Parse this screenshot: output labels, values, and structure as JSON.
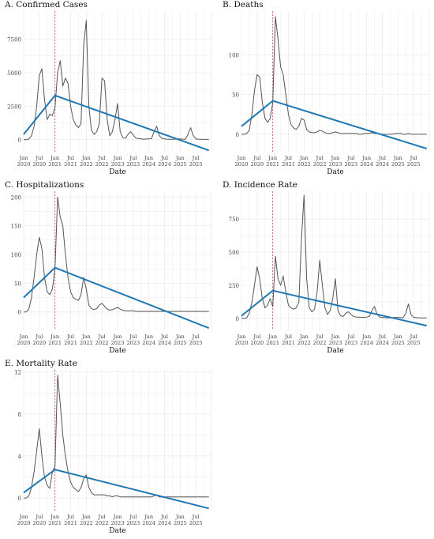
{
  "x_tick_labels": [
    [
      "Jan",
      "2020"
    ],
    [
      "Jul",
      "2020"
    ],
    [
      "Jan",
      "2021"
    ],
    [
      "Jul",
      "2021"
    ],
    [
      "Jan",
      "2022"
    ],
    [
      "Jul",
      "2022"
    ],
    [
      "Jan",
      "2023"
    ],
    [
      "Jul",
      "2023"
    ],
    [
      "Jan",
      "2024"
    ],
    [
      "Jul",
      "2024"
    ],
    [
      "Jan",
      "2025"
    ],
    [
      "Jul",
      "2025"
    ]
  ],
  "colors": {
    "series": "#555555",
    "trend": "#1f78b4",
    "vline": "#e0505a",
    "grid": "#ebebeb"
  },
  "chart_data": [
    {
      "type": "line",
      "title": "A. Confirmed Cases",
      "xlabel": "Date",
      "ylabel": "",
      "xlim": [
        "2020-01",
        "2025-12"
      ],
      "ylim": [
        -900,
        9600
      ],
      "yticks": [
        0,
        2500,
        5000,
        7500
      ],
      "grid": true,
      "breakpoint": "2021-01",
      "series": [
        {
          "x": [
            "2020-01",
            "2020-02",
            "2020-03",
            "2020-04",
            "2020-05",
            "2020-06",
            "2020-07",
            "2020-08",
            "2020-09",
            "2020-10",
            "2020-11",
            "2020-12",
            "2021-01",
            "2021-02",
            "2021-03",
            "2021-04",
            "2021-05",
            "2021-06",
            "2021-07",
            "2021-08",
            "2021-09",
            "2021-10",
            "2021-11",
            "2021-12",
            "2022-01",
            "2022-02",
            "2022-03",
            "2022-04",
            "2022-05",
            "2022-06",
            "2022-07",
            "2022-08",
            "2022-09",
            "2022-10",
            "2022-11",
            "2022-12",
            "2023-01",
            "2023-02",
            "2023-03",
            "2023-04",
            "2023-05",
            "2023-06",
            "2023-07",
            "2023-08",
            "2023-09",
            "2023-10",
            "2023-11",
            "2023-12",
            "2024-01",
            "2024-02",
            "2024-03",
            "2024-04",
            "2024-05",
            "2024-06",
            "2024-07",
            "2024-08",
            "2024-09",
            "2024-10",
            "2024-11",
            "2024-12",
            "2025-01",
            "2025-02",
            "2025-03",
            "2025-04",
            "2025-05",
            "2025-06",
            "2025-07",
            "2025-08",
            "2025-09",
            "2025-10",
            "2025-11",
            "2025-12"
          ],
          "values": [
            0,
            0,
            50,
            300,
            1000,
            2500,
            4800,
            5300,
            3000,
            1500,
            1900,
            1800,
            2400,
            5000,
            5900,
            4000,
            4600,
            4200,
            2500,
            1500,
            1100,
            900,
            1200,
            7000,
            8900,
            2500,
            700,
            400,
            600,
            1200,
            4600,
            4400,
            1500,
            300,
            600,
            1500,
            2700,
            600,
            150,
            100,
            400,
            600,
            350,
            120,
            80,
            60,
            40,
            50,
            60,
            80,
            600,
            1000,
            300,
            100,
            60,
            40,
            30,
            30,
            40,
            50,
            60,
            40,
            30,
            400,
            900,
            300,
            60,
            40,
            30,
            20,
            20,
            20
          ]
        },
        {
          "x": [
            "2020-01",
            "2021-01",
            "2025-12"
          ],
          "values": [
            400,
            3300,
            -800
          ]
        }
      ]
    },
    {
      "type": "line",
      "title": "B. Deaths",
      "xlabel": "Date",
      "ylabel": "",
      "xlim": [
        "2020-01",
        "2025-12"
      ],
      "ylim": [
        -22,
        155
      ],
      "yticks": [
        0,
        50,
        100
      ],
      "grid": true,
      "breakpoint": "2021-01",
      "series": [
        {
          "x": [
            "2020-01",
            "2020-02",
            "2020-03",
            "2020-04",
            "2020-05",
            "2020-06",
            "2020-07",
            "2020-08",
            "2020-09",
            "2020-10",
            "2020-11",
            "2020-12",
            "2021-01",
            "2021-02",
            "2021-03",
            "2021-04",
            "2021-05",
            "2021-06",
            "2021-07",
            "2021-08",
            "2021-09",
            "2021-10",
            "2021-11",
            "2021-12",
            "2022-01",
            "2022-02",
            "2022-03",
            "2022-04",
            "2022-05",
            "2022-06",
            "2022-07",
            "2022-08",
            "2022-09",
            "2022-10",
            "2022-11",
            "2022-12",
            "2023-01",
            "2023-02",
            "2023-03",
            "2023-04",
            "2023-05",
            "2023-06",
            "2023-07",
            "2023-08",
            "2023-09",
            "2023-10",
            "2023-11",
            "2023-12",
            "2024-01",
            "2024-02",
            "2024-03",
            "2024-04",
            "2024-05",
            "2024-06",
            "2024-07",
            "2024-08",
            "2024-09",
            "2024-10",
            "2024-11",
            "2024-12",
            "2025-01",
            "2025-02",
            "2025-03",
            "2025-04",
            "2025-05",
            "2025-06",
            "2025-07",
            "2025-08",
            "2025-09",
            "2025-10",
            "2025-11",
            "2025-12"
          ],
          "values": [
            0,
            0,
            1,
            5,
            25,
            55,
            75,
            72,
            40,
            20,
            15,
            20,
            40,
            148,
            120,
            85,
            75,
            50,
            25,
            12,
            8,
            6,
            10,
            20,
            18,
            6,
            3,
            2,
            2,
            3,
            5,
            4,
            2,
            1,
            1,
            2,
            3,
            2,
            1,
            1,
            1,
            1,
            1,
            1,
            1,
            0,
            0,
            1,
            1,
            1,
            2,
            1,
            1,
            0,
            0,
            0,
            0,
            0,
            0,
            1,
            1,
            1,
            0,
            0,
            1,
            0,
            0,
            0,
            0,
            0,
            0,
            0
          ]
        },
        {
          "x": [
            "2020-01",
            "2021-01",
            "2025-12"
          ],
          "values": [
            10,
            42,
            -18
          ]
        }
      ]
    },
    {
      "type": "line",
      "title": "C. Hospitalizations",
      "xlabel": "Date",
      "ylabel": "",
      "xlim": [
        "2020-01",
        "2025-12"
      ],
      "ylim": [
        -32,
        210
      ],
      "yticks": [
        0,
        50,
        100,
        150,
        200
      ],
      "grid": true,
      "breakpoint": "2021-01",
      "series": [
        {
          "x": [
            "2020-01",
            "2020-02",
            "2020-03",
            "2020-04",
            "2020-05",
            "2020-06",
            "2020-07",
            "2020-08",
            "2020-09",
            "2020-10",
            "2020-11",
            "2020-12",
            "2021-01",
            "2021-02",
            "2021-03",
            "2021-04",
            "2021-05",
            "2021-06",
            "2021-07",
            "2021-08",
            "2021-09",
            "2021-10",
            "2021-11",
            "2021-12",
            "2022-01",
            "2022-02",
            "2022-03",
            "2022-04",
            "2022-05",
            "2022-06",
            "2022-07",
            "2022-08",
            "2022-09",
            "2022-10",
            "2022-11",
            "2022-12",
            "2023-01",
            "2023-02",
            "2023-03",
            "2023-04",
            "2023-05",
            "2023-06",
            "2023-07",
            "2023-08",
            "2023-09",
            "2023-10",
            "2023-11",
            "2023-12",
            "2024-01",
            "2024-02",
            "2024-03",
            "2024-04",
            "2024-05",
            "2024-06",
            "2024-07",
            "2024-08",
            "2024-09",
            "2024-10",
            "2024-11",
            "2024-12",
            "2025-01",
            "2025-02",
            "2025-03",
            "2025-04",
            "2025-05",
            "2025-06",
            "2025-07",
            "2025-08",
            "2025-09",
            "2025-10",
            "2025-11",
            "2025-12"
          ],
          "values": [
            0,
            0,
            5,
            25,
            60,
            100,
            130,
            110,
            60,
            35,
            30,
            40,
            75,
            200,
            165,
            150,
            100,
            60,
            35,
            25,
            22,
            20,
            30,
            60,
            40,
            12,
            6,
            4,
            6,
            12,
            15,
            10,
            5,
            3,
            4,
            6,
            8,
            5,
            3,
            2,
            2,
            2,
            2,
            1,
            1,
            1,
            1,
            1,
            1,
            1,
            1,
            1,
            1,
            1,
            1,
            1,
            1,
            1,
            1,
            1,
            1,
            1,
            1,
            1,
            1,
            1,
            1,
            1,
            1,
            1,
            1,
            1
          ]
        },
        {
          "x": [
            "2020-01",
            "2021-01",
            "2025-12"
          ],
          "values": [
            25,
            77,
            -28
          ]
        }
      ]
    },
    {
      "type": "line",
      "title": "D. Incidence Rate",
      "xlabel": "Date",
      "ylabel": "",
      "xlim": [
        "2020-01",
        "2025-12"
      ],
      "ylim": [
        -90,
        960
      ],
      "yticks": [
        0,
        250,
        500,
        750
      ],
      "grid": true,
      "breakpoint": "2021-01",
      "series": [
        {
          "x": [
            "2020-01",
            "2020-02",
            "2020-03",
            "2020-04",
            "2020-05",
            "2020-06",
            "2020-07",
            "2020-08",
            "2020-09",
            "2020-10",
            "2020-11",
            "2020-12",
            "2021-01",
            "2021-02",
            "2021-03",
            "2021-04",
            "2021-05",
            "2021-06",
            "2021-07",
            "2021-08",
            "2021-09",
            "2021-10",
            "2021-11",
            "2021-12",
            "2022-01",
            "2022-02",
            "2022-03",
            "2022-04",
            "2022-05",
            "2022-06",
            "2022-07",
            "2022-08",
            "2022-09",
            "2022-10",
            "2022-11",
            "2022-12",
            "2023-01",
            "2023-02",
            "2023-03",
            "2023-04",
            "2023-05",
            "2023-06",
            "2023-07",
            "2023-08",
            "2023-09",
            "2023-10",
            "2023-11",
            "2023-12",
            "2024-01",
            "2024-02",
            "2024-03",
            "2024-04",
            "2024-05",
            "2024-06",
            "2024-07",
            "2024-08",
            "2024-09",
            "2024-10",
            "2024-11",
            "2024-12",
            "2025-01",
            "2025-02",
            "2025-03",
            "2025-04",
            "2025-05",
            "2025-06",
            "2025-07",
            "2025-08",
            "2025-09",
            "2025-10",
            "2025-11",
            "2025-12"
          ],
          "values": [
            0,
            0,
            5,
            40,
            120,
            250,
            390,
            300,
            150,
            80,
            100,
            150,
            90,
            470,
            300,
            250,
            320,
            200,
            100,
            80,
            70,
            80,
            120,
            600,
            930,
            300,
            80,
            50,
            70,
            200,
            440,
            250,
            80,
            30,
            60,
            150,
            300,
            60,
            20,
            15,
            40,
            50,
            30,
            15,
            10,
            10,
            8,
            8,
            10,
            15,
            60,
            90,
            30,
            10,
            8,
            6,
            5,
            5,
            6,
            8,
            8,
            6,
            5,
            40,
            110,
            30,
            8,
            6,
            5,
            4,
            4,
            4
          ]
        },
        {
          "x": [
            "2020-01",
            "2021-01",
            "2025-12"
          ],
          "values": [
            20,
            210,
            -55
          ]
        }
      ]
    },
    {
      "type": "line",
      "title": "E. Mortality Rate",
      "xlabel": "Date",
      "ylabel": "",
      "xlim": [
        "2020-01",
        "2025-12"
      ],
      "ylim": [
        -1.2,
        12.2
      ],
      "yticks": [
        0,
        4,
        8,
        12
      ],
      "grid": true,
      "breakpoint": "2021-01",
      "series": [
        {
          "x": [
            "2020-01",
            "2020-02",
            "2020-03",
            "2020-04",
            "2020-05",
            "2020-06",
            "2020-07",
            "2020-08",
            "2020-09",
            "2020-10",
            "2020-11",
            "2020-12",
            "2021-01",
            "2021-02",
            "2021-03",
            "2021-04",
            "2021-05",
            "2021-06",
            "2021-07",
            "2021-08",
            "2021-09",
            "2021-10",
            "2021-11",
            "2021-12",
            "2022-01",
            "2022-02",
            "2022-03",
            "2022-04",
            "2022-05",
            "2022-06",
            "2022-07",
            "2022-08",
            "2022-09",
            "2022-10",
            "2022-11",
            "2022-12",
            "2023-01",
            "2023-02",
            "2023-03",
            "2023-04",
            "2023-05",
            "2023-06",
            "2023-07",
            "2023-08",
            "2023-09",
            "2023-10",
            "2023-11",
            "2023-12",
            "2024-01",
            "2024-02",
            "2024-03",
            "2024-04",
            "2024-05",
            "2024-06",
            "2024-07",
            "2024-08",
            "2024-09",
            "2024-10",
            "2024-11",
            "2024-12",
            "2025-01",
            "2025-02",
            "2025-03",
            "2025-04",
            "2025-05",
            "2025-06",
            "2025-07",
            "2025-08",
            "2025-09",
            "2025-10",
            "2025-11",
            "2025-12"
          ],
          "values": [
            0,
            0,
            0.2,
            1,
            2.5,
            4.5,
            6.6,
            4,
            2,
            1.2,
            0.9,
            2.5,
            3.0,
            11.7,
            9,
            6,
            4,
            2.5,
            1.5,
            1,
            0.8,
            0.6,
            1,
            1.8,
            2.2,
            1,
            0.5,
            0.3,
            0.3,
            0.3,
            0.3,
            0.3,
            0.2,
            0.2,
            0.1,
            0.2,
            0.2,
            0.1,
            0.1,
            0.1,
            0.1,
            0.1,
            0.1,
            0.1,
            0.1,
            0.1,
            0.1,
            0.1,
            0.1,
            0.1,
            0.2,
            0.3,
            0.1,
            0.1,
            0.1,
            0.1,
            0.1,
            0.1,
            0.1,
            0.1,
            0.1,
            0.1,
            0.1,
            0.1,
            0.1,
            0.1,
            0.1,
            0.1,
            0.1,
            0.1,
            0.1,
            0.1
          ]
        },
        {
          "x": [
            "2020-01",
            "2021-01",
            "2025-12"
          ],
          "values": [
            0.5,
            2.7,
            -1.0
          ]
        }
      ]
    }
  ]
}
